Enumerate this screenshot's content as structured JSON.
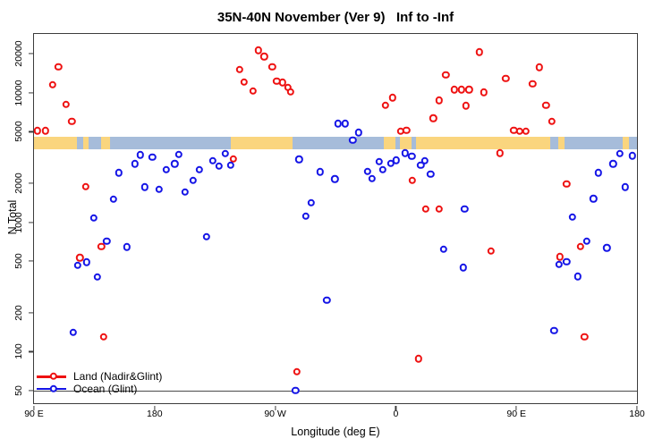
{
  "window": {
    "title_text": "35N-40N November (Ver 9)   Inf to -Inf"
  },
  "chart_data": {
    "type": "scatter",
    "title": "35N-40N November (Ver 9)   Inf to -Inf",
    "xlabel": "Longitude (deg E)",
    "ylabel": "N Total",
    "grid": false,
    "legend_position": "bottom-left-inside",
    "x_axis": {
      "note": "longitude in deg E unwrapped eastward from 90E to 540 (=180E)",
      "range": [
        90,
        540
      ],
      "ticks": [
        {
          "pos": 90,
          "label": "90 E"
        },
        {
          "pos": 180,
          "label": "180"
        },
        {
          "pos": 270,
          "label": "90 W"
        },
        {
          "pos": 360,
          "label": "0"
        },
        {
          "pos": 450,
          "label": "90 E"
        },
        {
          "pos": 540,
          "label": "180"
        }
      ]
    },
    "y_axis": {
      "scale": "log",
      "range": [
        40,
        28500
      ],
      "ticks": [
        50,
        100,
        200,
        500,
        1000,
        2000,
        5000,
        10000,
        20000
      ]
    },
    "reference_line_y": 50,
    "surface_band": {
      "description": "land/ocean mask strip drawn across plot",
      "value_range": [
        3640,
        4610
      ],
      "land_color": "#FAD57E",
      "ocean_color": "#A6BCDA",
      "segments": [
        [
          90,
          122,
          "land"
        ],
        [
          122,
          127,
          "ocean"
        ],
        [
          127,
          131,
          "land"
        ],
        [
          131,
          140,
          "ocean"
        ],
        [
          140,
          147,
          "land"
        ],
        [
          147,
          237,
          "ocean"
        ],
        [
          237,
          283,
          "land"
        ],
        [
          283,
          351,
          "ocean"
        ],
        [
          351,
          360,
          "land"
        ],
        [
          360,
          363,
          "ocean"
        ],
        [
          363,
          372,
          "land"
        ],
        [
          372,
          375,
          "ocean"
        ],
        [
          375,
          475,
          "land"
        ],
        [
          475,
          481,
          "ocean"
        ],
        [
          481,
          486,
          "land"
        ],
        [
          486,
          529,
          "ocean"
        ],
        [
          529,
          534,
          "land"
        ],
        [
          534,
          540,
          "ocean"
        ]
      ]
    },
    "series": [
      {
        "name": "Land (Nadir&Glint)",
        "color": "#EE1111",
        "points": [
          [
            92.7,
            5100
          ],
          [
            98.7,
            5100
          ],
          [
            103.8,
            11500
          ],
          [
            108.2,
            15800
          ],
          [
            113.8,
            8100
          ],
          [
            118.3,
            6000
          ],
          [
            124.3,
            533
          ],
          [
            128.7,
            1890
          ],
          [
            140.3,
            650
          ],
          [
            142.1,
            130
          ],
          [
            238.9,
            3090
          ],
          [
            243.3,
            15200
          ],
          [
            246.7,
            12150
          ],
          [
            253.3,
            10350
          ],
          [
            257.3,
            21300
          ],
          [
            261.8,
            19100
          ],
          [
            267.8,
            15800
          ],
          [
            271.1,
            12250
          ],
          [
            275.6,
            12000
          ],
          [
            279.4,
            11000
          ],
          [
            281.4,
            10200
          ],
          [
            286.3,
            70
          ],
          [
            352.4,
            8040
          ],
          [
            357.5,
            9170
          ],
          [
            363.5,
            5070
          ],
          [
            367.9,
            5150
          ],
          [
            372.4,
            2100
          ],
          [
            376.8,
            88
          ],
          [
            382.4,
            1270
          ],
          [
            388.0,
            6360
          ],
          [
            392.4,
            8750
          ],
          [
            392.4,
            1270
          ],
          [
            397.3,
            13700
          ],
          [
            403.6,
            10600
          ],
          [
            409.1,
            10600
          ],
          [
            412.4,
            7950
          ],
          [
            414.7,
            10600
          ],
          [
            422.4,
            20600
          ],
          [
            425.8,
            10100
          ],
          [
            431.0,
            600
          ],
          [
            437.6,
            3430
          ],
          [
            442.0,
            12950
          ],
          [
            448.1,
            5150
          ],
          [
            452.5,
            5070
          ],
          [
            457.0,
            5070
          ],
          [
            462.1,
            11700
          ],
          [
            467.0,
            15700
          ],
          [
            472.1,
            8040
          ],
          [
            476.6,
            6000
          ],
          [
            482.5,
            540
          ],
          [
            487.5,
            1970
          ],
          [
            498.0,
            650
          ],
          [
            500.7,
            130
          ]
        ]
      },
      {
        "name": "Ocean (Glint)",
        "color": "#1414E6",
        "points": [
          [
            119.4,
            141
          ],
          [
            122.5,
            465
          ],
          [
            129.4,
            490
          ],
          [
            134.7,
            1080
          ],
          [
            137.2,
            378
          ],
          [
            144.3,
            715
          ],
          [
            149.4,
            1510
          ],
          [
            153.2,
            2410
          ],
          [
            159.4,
            645
          ],
          [
            165.4,
            2830
          ],
          [
            169.2,
            3310
          ],
          [
            172.8,
            1870
          ],
          [
            178.3,
            3170
          ],
          [
            183.2,
            1800
          ],
          [
            188.8,
            2540
          ],
          [
            195.0,
            2830
          ],
          [
            198.2,
            3350
          ],
          [
            202.5,
            1710
          ],
          [
            208.8,
            2110
          ],
          [
            213.3,
            2540
          ],
          [
            218.8,
            775
          ],
          [
            223.3,
            2980
          ],
          [
            228.2,
            2710
          ],
          [
            232.6,
            3400
          ],
          [
            236.6,
            2750
          ],
          [
            285.2,
            50
          ],
          [
            287.8,
            3060
          ],
          [
            293.0,
            1110
          ],
          [
            296.7,
            1420
          ],
          [
            303.4,
            2450
          ],
          [
            308.5,
            250
          ],
          [
            314.5,
            2150
          ],
          [
            316.8,
            5780
          ],
          [
            322.3,
            5780
          ],
          [
            327.9,
            4320
          ],
          [
            332.3,
            4930
          ],
          [
            339.0,
            2480
          ],
          [
            342.4,
            2180
          ],
          [
            347.5,
            2940
          ],
          [
            350.4,
            2550
          ],
          [
            356.3,
            2860
          ],
          [
            360.1,
            3010
          ],
          [
            366.8,
            3430
          ],
          [
            371.9,
            3250
          ],
          [
            378.6,
            2760
          ],
          [
            381.7,
            2990
          ],
          [
            386.0,
            2360
          ],
          [
            395.8,
            620
          ],
          [
            410.2,
            447
          ],
          [
            411.3,
            1270
          ],
          [
            478.0,
            145
          ],
          [
            481.8,
            474
          ],
          [
            487.4,
            497
          ],
          [
            492.0,
            1100
          ],
          [
            495.8,
            381
          ],
          [
            502.5,
            715
          ],
          [
            507.4,
            1520
          ],
          [
            511.0,
            2410
          ],
          [
            517.6,
            634
          ],
          [
            522.1,
            2830
          ],
          [
            527.1,
            3400
          ],
          [
            531.1,
            1870
          ],
          [
            536.4,
            3260
          ]
        ]
      }
    ],
    "legend": {
      "entries": [
        {
          "label": "Land (Nadir&Glint)",
          "color": "#EE1111"
        },
        {
          "label": "Ocean (Glint)",
          "color": "#1414E6"
        }
      ]
    }
  }
}
